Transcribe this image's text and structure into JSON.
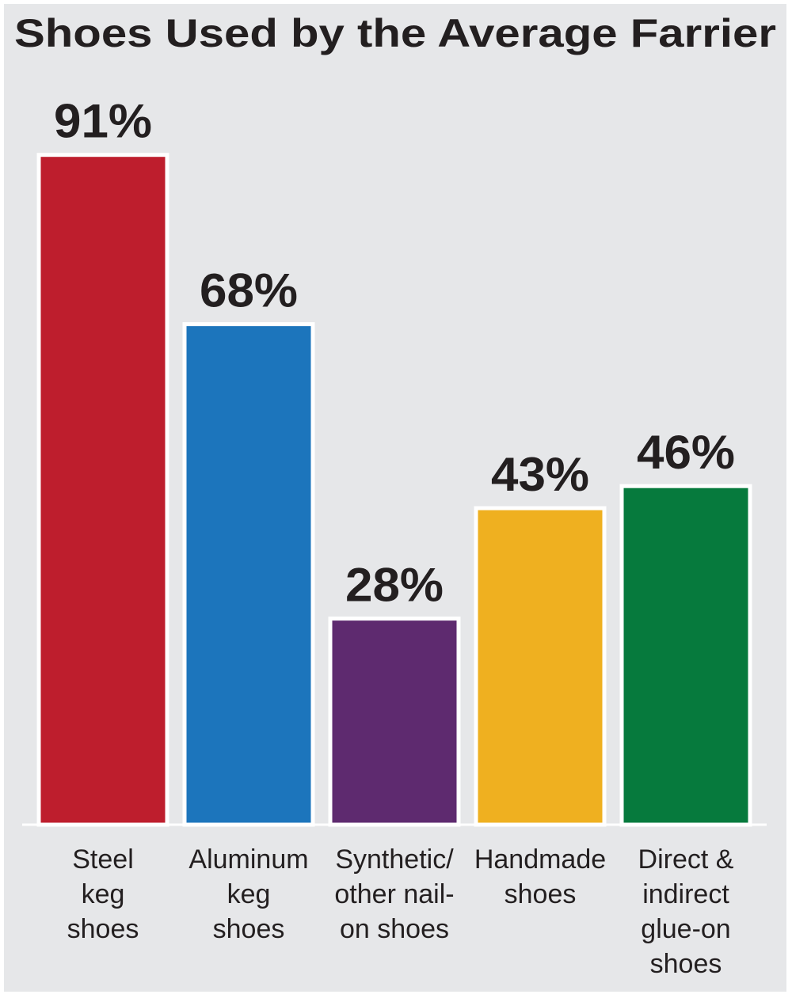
{
  "chart_data": {
    "type": "bar",
    "title": "Shoes Used by the Average Farrier",
    "categories": [
      [
        "Steel",
        "keg",
        "shoes"
      ],
      [
        "Aluminum",
        "keg",
        "shoes"
      ],
      [
        "Synthetic/",
        "other nail-",
        "on shoes"
      ],
      [
        "Handmade",
        "shoes"
      ],
      [
        "Direct &",
        "indirect",
        "glue-on",
        "shoes"
      ]
    ],
    "values": [
      91,
      68,
      28,
      43,
      46
    ],
    "value_labels": [
      "91%",
      "68%",
      "28%",
      "43%",
      "46%"
    ],
    "colors": [
      "#be1e2d",
      "#1c75bc",
      "#5e2a6f",
      "#efb020",
      "#067a3d"
    ],
    "ylim": [
      0,
      100
    ]
  }
}
